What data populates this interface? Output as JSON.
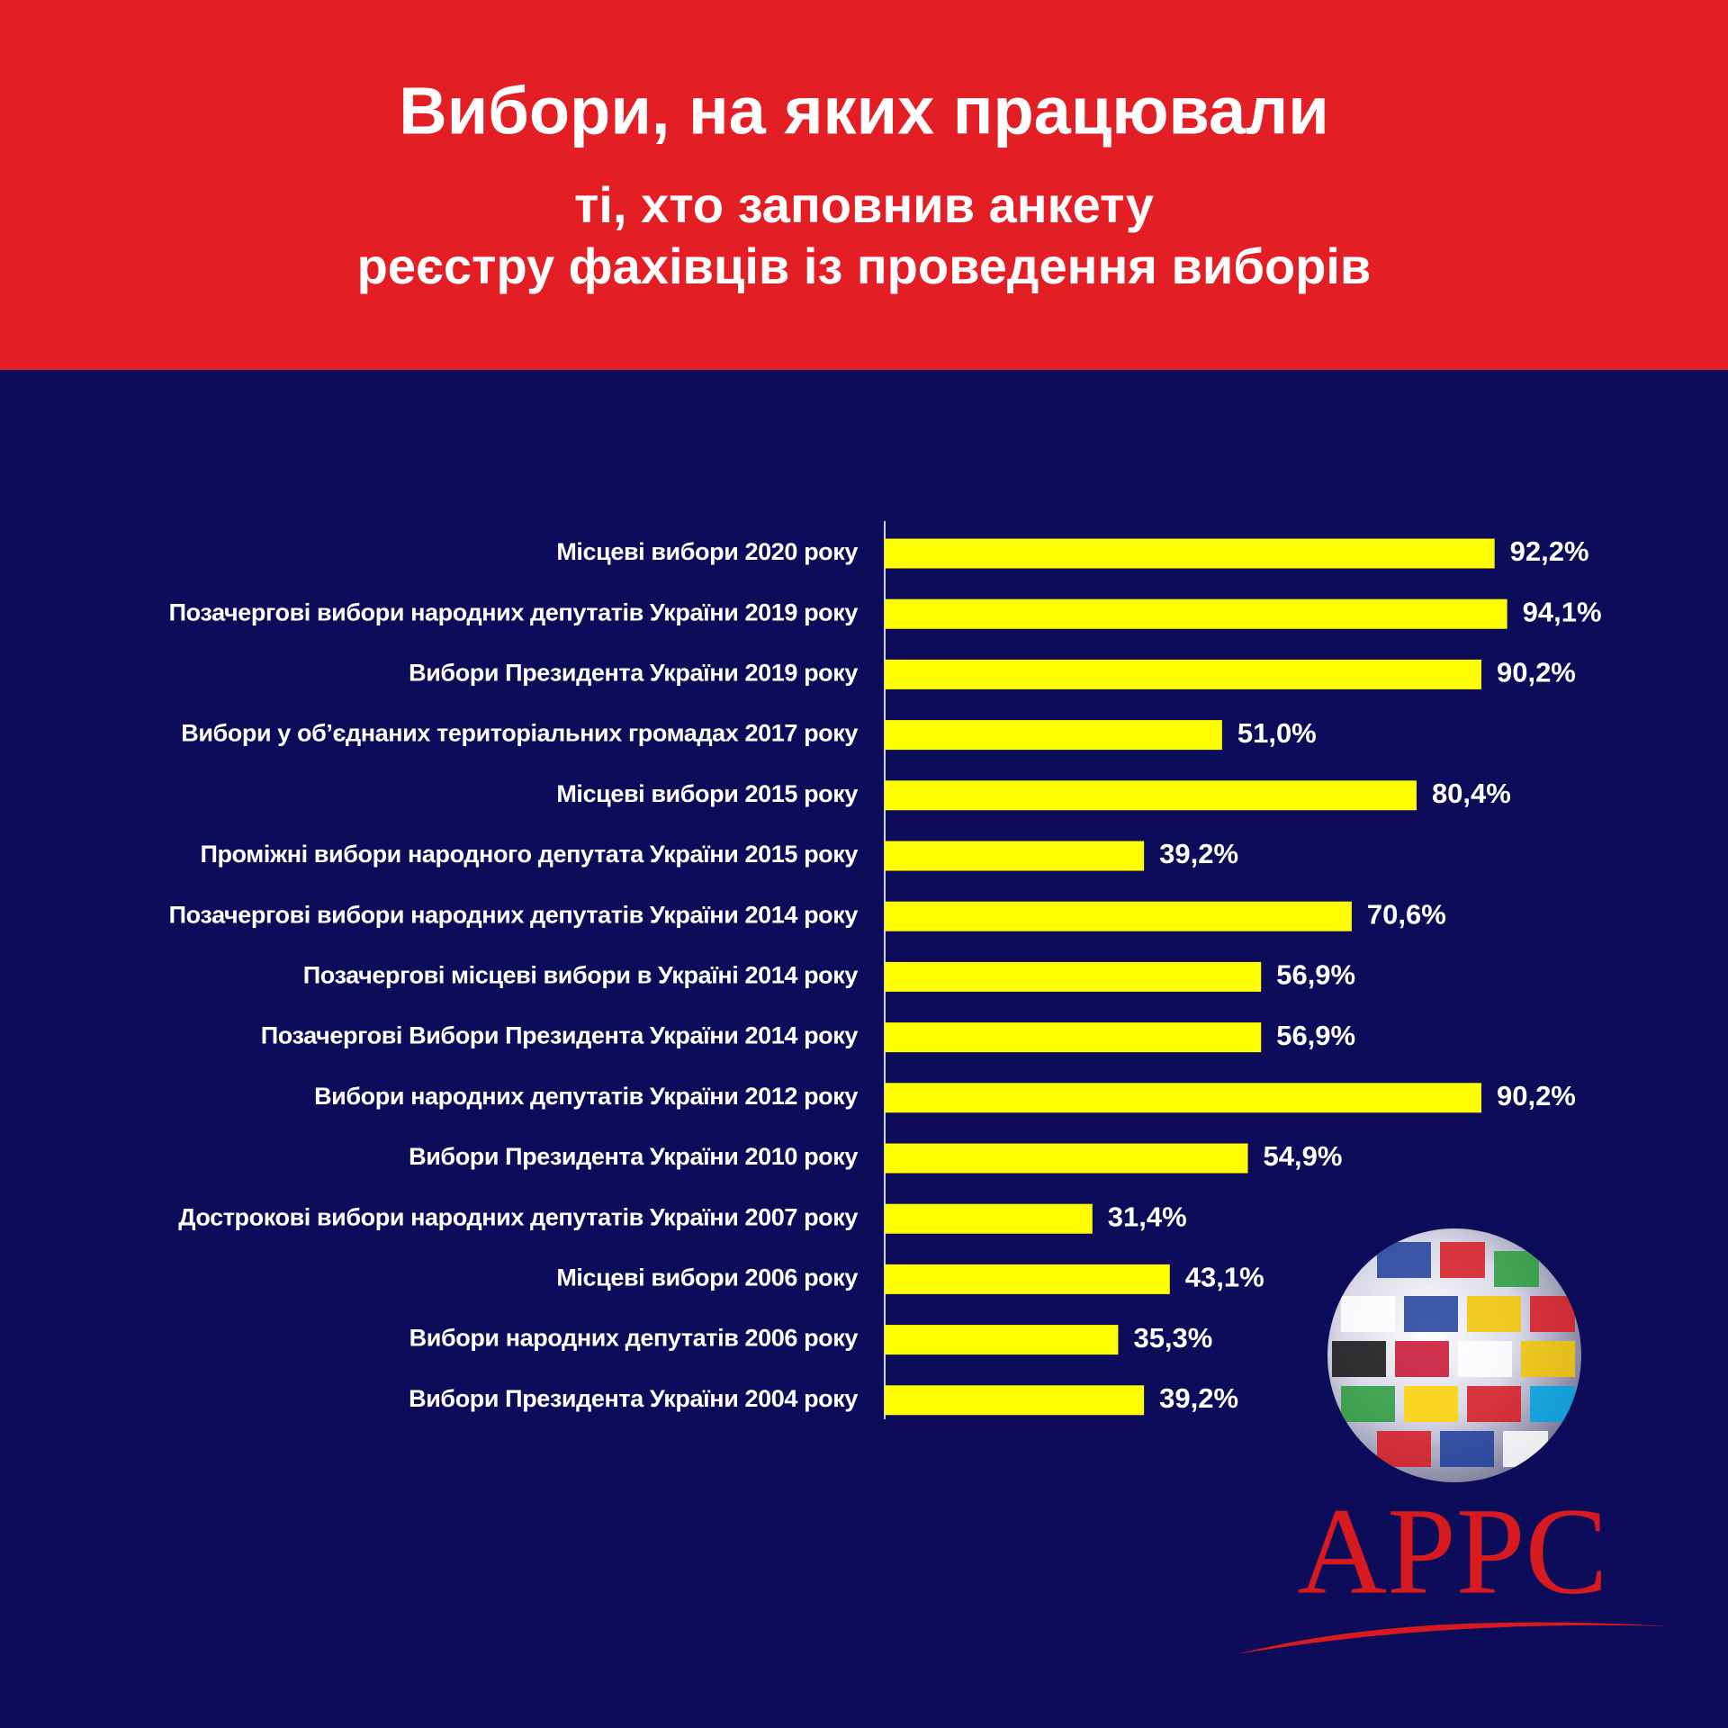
{
  "chart_data": {
    "type": "bar",
    "title": "Вибори, на яких працювали",
    "subtitle": [
      "ті, хто заповнив анкету",
      "реєстру фахівців із проведення виборів"
    ],
    "categories": [
      "Місцеві вибори 2020 року",
      "Позачергові вибори народних депутатів України 2019 року",
      "Вибори Президента України 2019 року",
      "Вибори у об’єднаних територіальних громадах 2017 року",
      "Місцеві вибори 2015 року",
      "Проміжні вибори народного депутата України 2015 року",
      "Позачергові вибори народних депутатів України 2014 року",
      "Позачергові місцеві вибори в Україні 2014 року",
      "Позачергові Вибори Президента України 2014 року",
      "Вибори народних депутатів України 2012 року",
      "Вибори Президента України 2010 року",
      "Дострокові вибори народних депутатів України 2007 року",
      "Місцеві вибори 2006 року",
      "Вибори народних депутатів 2006 року",
      "Вибори Президента України 2004 року"
    ],
    "values": [
      92.2,
      94.1,
      90.2,
      51.0,
      80.4,
      39.2,
      70.6,
      56.9,
      56.9,
      90.2,
      54.9,
      31.4,
      43.1,
      35.3,
      39.2
    ],
    "value_labels": [
      "92,2%",
      "94,1%",
      "90,2%",
      "51,0%",
      "80,4%",
      "39,2%",
      "70,6%",
      "56,9%",
      "56,9%",
      "90,2%",
      "54,9%",
      "31,4%",
      "43,1%",
      "35,3%",
      "39,2%"
    ],
    "color": "#ffff00",
    "xlim": [
      0,
      100
    ],
    "logo": "APPC"
  }
}
